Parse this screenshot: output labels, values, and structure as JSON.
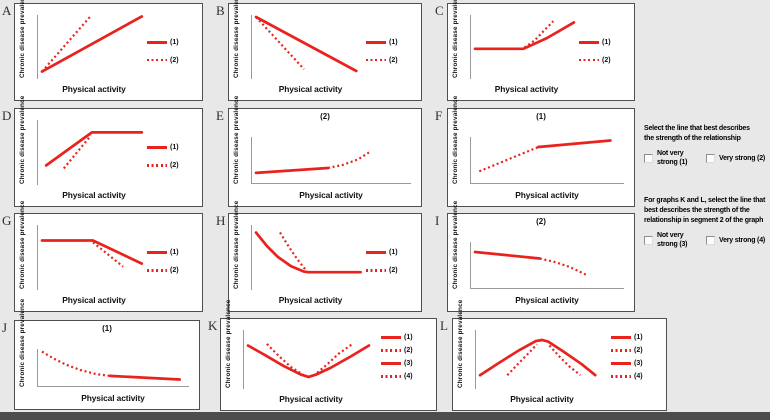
{
  "colors": {
    "line_red": "#e8231e",
    "panel_border": "#4f4f4f",
    "axis_gray": "#9a9a9a",
    "background": "#e8e8e8",
    "bottom_strip": "#4d4d4d"
  },
  "labels": {
    "x_axis": "Physical activity",
    "y_axis": "Chronic disease prevalence"
  },
  "sidebar": {
    "question1": {
      "heading_lines": [
        "Select the line that best describes",
        "the strength of the relationship"
      ],
      "options": [
        {
          "label_lines": [
            "Not very",
            "strong (1)"
          ],
          "checked": false
        },
        {
          "label_lines": [
            "Very strong (2)"
          ],
          "checked": false
        }
      ]
    },
    "question2": {
      "heading_lines": [
        "For graphs K and L, select the line that",
        "best describes the strength of the",
        "relationship in segment 2 of the graph"
      ],
      "options": [
        {
          "label_lines": [
            "Not very",
            "strong (3)"
          ],
          "checked": false
        },
        {
          "label_lines": [
            "Very strong (4)"
          ],
          "checked": false
        }
      ]
    }
  },
  "chart_data": [
    {
      "id": "A",
      "type": "line",
      "title": "",
      "axes": "y",
      "xlabel": "Physical activity",
      "ylabel": "Chronic disease prevalence",
      "legend": [
        {
          "label": "(1)",
          "style": "solid"
        },
        {
          "label": "(2)",
          "style": "dotted"
        }
      ],
      "series": [
        {
          "name": "(1)",
          "style": "solid",
          "points": [
            [
              0,
              4
            ],
            [
              96,
              96
            ]
          ]
        },
        {
          "name": "(2)",
          "style": "dotted",
          "points": [
            [
              0,
              4
            ],
            [
              47,
              97
            ]
          ]
        }
      ]
    },
    {
      "id": "B",
      "type": "line",
      "title": "",
      "axes": "y",
      "xlabel": "Physical activity",
      "ylabel": "Chronic disease prevalence",
      "legend": [
        {
          "label": "(1)",
          "style": "solid"
        },
        {
          "label": "(2)",
          "style": "dotted"
        }
      ],
      "series": [
        {
          "name": "(1)",
          "style": "solid",
          "points": [
            [
              0,
              95
            ],
            [
              92,
              5
            ]
          ]
        },
        {
          "name": "(2)",
          "style": "dotted",
          "points": [
            [
              0,
              95
            ],
            [
              44,
              8
            ]
          ]
        }
      ]
    },
    {
      "id": "C",
      "type": "line",
      "title": "",
      "axes": "y",
      "xlabel": "Physical activity",
      "ylabel": "Chronic disease prevalence",
      "legend": [
        {
          "label": "(1)",
          "style": "solid"
        },
        {
          "label": "(2)",
          "style": "dotted"
        }
      ],
      "series": [
        {
          "name": "(1)",
          "style": "solid",
          "points": [
            [
              0,
              42
            ],
            [
              47,
              42
            ],
            [
              70,
              60
            ],
            [
              96,
              86
            ]
          ]
        },
        {
          "name": "(2)",
          "style": "dotted",
          "points": [
            [
              48,
              44
            ],
            [
              58,
              56
            ],
            [
              68,
              74
            ],
            [
              76,
              88
            ]
          ]
        }
      ]
    },
    {
      "id": "D",
      "type": "line",
      "title": "",
      "axes": "y",
      "xlabel": "Physical activity",
      "ylabel": "Chronic disease prevalence",
      "legend": [
        {
          "label": "(1)",
          "style": "solid"
        },
        {
          "label": "(2)",
          "style": "dotted"
        }
      ],
      "series": [
        {
          "name": "(1)",
          "style": "solid",
          "points": [
            [
              4,
              24
            ],
            [
              48,
              78
            ],
            [
              96,
              78
            ]
          ]
        },
        {
          "name": "(2)",
          "style": "dotted",
          "points": [
            [
              21,
              19
            ],
            [
              47,
              73
            ]
          ]
        }
      ]
    },
    {
      "id": "E",
      "type": "line",
      "title": "(2)",
      "axes": "xy",
      "xlabel": "Physical activity",
      "ylabel": "Chronic disease prevalence",
      "legend": [],
      "series": [
        {
          "name": "segment-1",
          "style": "solid",
          "points": [
            [
              0,
              15
            ],
            [
              48,
              24
            ]
          ]
        },
        {
          "name": "segment-2",
          "style": "dotted",
          "points": [
            [
              48,
              24
            ],
            [
              58,
              30
            ],
            [
              68,
              40
            ],
            [
              76,
              54
            ]
          ]
        }
      ]
    },
    {
      "id": "F",
      "type": "line",
      "title": "(1)",
      "axes": "xy",
      "xlabel": "Physical activity",
      "ylabel": "Chronic disease prevalence",
      "legend": [],
      "series": [
        {
          "name": "segment-1",
          "style": "dotted",
          "points": [
            [
              3,
              18
            ],
            [
              44,
              63
            ]
          ]
        },
        {
          "name": "segment-2",
          "style": "solid",
          "points": [
            [
              44,
              63
            ],
            [
              94,
              75
            ]
          ]
        }
      ]
    },
    {
      "id": "G",
      "type": "line",
      "title": "",
      "axes": "y",
      "xlabel": "Physical activity",
      "ylabel": "Chronic disease prevalence",
      "legend": [
        {
          "label": "(1)",
          "style": "solid"
        },
        {
          "label": "(2)",
          "style": "dotted"
        }
      ],
      "series": [
        {
          "name": "(1)",
          "style": "solid",
          "points": [
            [
              0,
              73
            ],
            [
              49,
              73
            ],
            [
              96,
              35
            ]
          ]
        },
        {
          "name": "(2)",
          "style": "dotted",
          "points": [
            [
              49,
              70
            ],
            [
              78,
              30
            ]
          ]
        }
      ]
    },
    {
      "id": "H",
      "type": "line",
      "title": "",
      "axes": "y",
      "xlabel": "Physical activity",
      "ylabel": "Chronic disease prevalence",
      "legend": [
        {
          "label": "(1)",
          "style": "solid"
        },
        {
          "label": "(2)",
          "style": "dotted"
        }
      ],
      "series": [
        {
          "name": "(1)",
          "style": "solid",
          "points": [
            [
              0,
              86
            ],
            [
              10,
              64
            ],
            [
              20,
              46
            ],
            [
              32,
              31
            ],
            [
              44,
              22
            ],
            [
              48,
              21
            ],
            [
              96,
              21
            ]
          ]
        },
        {
          "name": "(2)",
          "style": "dotted",
          "points": [
            [
              22,
              86
            ],
            [
              30,
              63
            ],
            [
              38,
              42
            ],
            [
              46,
              24
            ]
          ]
        }
      ]
    },
    {
      "id": "I",
      "type": "line",
      "title": "(2)",
      "axes": "xy",
      "xlabel": "Physical activity",
      "ylabel": "Chronic disease prevalence",
      "legend": [],
      "series": [
        {
          "name": "segment-1",
          "style": "solid",
          "points": [
            [
              0,
              63
            ],
            [
              45,
              51
            ]
          ]
        },
        {
          "name": "segment-2",
          "style": "dotted",
          "points": [
            [
              45,
              51
            ],
            [
              56,
              44
            ],
            [
              66,
              35
            ],
            [
              77,
              21
            ]
          ]
        }
      ]
    },
    {
      "id": "J",
      "type": "line",
      "title": "(1)",
      "axes": "xy",
      "xlabel": "Physical activity",
      "ylabel": "Chronic disease prevalence",
      "legend": [],
      "series": [
        {
          "name": "segment-1",
          "style": "dotted",
          "points": [
            [
              0,
              72
            ],
            [
              8,
              57
            ],
            [
              17,
              43
            ],
            [
              27,
              31
            ],
            [
              38,
              22
            ],
            [
              48,
              18
            ]
          ]
        },
        {
          "name": "segment-2",
          "style": "solid",
          "points": [
            [
              48,
              18
            ],
            [
              97,
              10
            ]
          ]
        }
      ]
    },
    {
      "id": "K",
      "type": "line",
      "title": "",
      "axes": "y",
      "xlabel": "Physical activity",
      "ylabel": "Chronic disease prevalence",
      "legend": [
        {
          "label": "(1)",
          "style": "solid"
        },
        {
          "label": "(2)",
          "style": "dotted"
        },
        {
          "label": "(3)",
          "style": "solid"
        },
        {
          "label": "(4)",
          "style": "dotted"
        }
      ],
      "series": [
        {
          "name": "(2)",
          "style": "dotted",
          "points": [
            [
              15,
              73
            ],
            [
              24,
              52
            ],
            [
              34,
              31
            ],
            [
              45,
              15
            ]
          ]
        },
        {
          "name": "(4)",
          "style": "dotted",
          "points": [
            [
              52,
              15
            ],
            [
              62,
              34
            ],
            [
              72,
              55
            ],
            [
              83,
              73
            ]
          ]
        },
        {
          "name": "(1)",
          "style": "solid",
          "points": [
            [
              0,
              70
            ],
            [
              14,
              52
            ],
            [
              28,
              33
            ],
            [
              42,
              17
            ],
            [
              48,
              13
            ]
          ]
        },
        {
          "name": "(3)",
          "style": "solid",
          "points": [
            [
              48,
              13
            ],
            [
              54,
              17
            ],
            [
              66,
              30
            ],
            [
              80,
              48
            ],
            [
              96,
              70
            ]
          ]
        }
      ]
    },
    {
      "id": "L",
      "type": "line",
      "title": "",
      "axes": "y",
      "xlabel": "Physical activity",
      "ylabel": "Chronic disease prevalence",
      "legend": [
        {
          "label": "(1)",
          "style": "solid"
        },
        {
          "label": "(2)",
          "style": "dotted"
        },
        {
          "label": "(3)",
          "style": "solid"
        },
        {
          "label": "(4)",
          "style": "dotted"
        }
      ],
      "series": [
        {
          "name": "(2)",
          "style": "dotted",
          "points": [
            [
              22,
              16
            ],
            [
              30,
              35
            ],
            [
              40,
              58
            ],
            [
              46,
              72
            ]
          ]
        },
        {
          "name": "(4)",
          "style": "dotted",
          "points": [
            [
              56,
              70
            ],
            [
              64,
              50
            ],
            [
              72,
              32
            ],
            [
              81,
              16
            ]
          ]
        },
        {
          "name": "(1)",
          "style": "solid",
          "points": [
            [
              0,
              16
            ],
            [
              15,
              38
            ],
            [
              32,
              62
            ],
            [
              45,
              78
            ],
            [
              50,
              80
            ]
          ]
        },
        {
          "name": "(3)",
          "style": "solid",
          "points": [
            [
              50,
              80
            ],
            [
              55,
              77
            ],
            [
              68,
              58
            ],
            [
              82,
              36
            ],
            [
              93,
              16
            ]
          ]
        }
      ]
    }
  ]
}
